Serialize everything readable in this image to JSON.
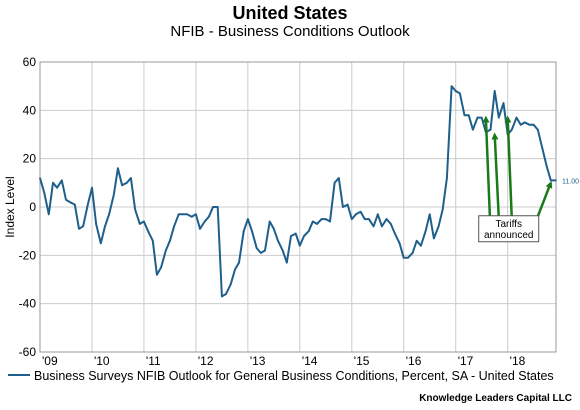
{
  "title": "United States",
  "subtitle": "NFIB - Business Conditions Outlook",
  "legend_label": "Business Surveys NFIB Outlook for General Business Conditions, Percent, SA - United States",
  "credit": "Knowledge Leaders Capital LLC",
  "colors": {
    "series": "#1f5f8b",
    "arrows": "#1a7a1a",
    "grid": "#cccccc"
  },
  "chart_data": {
    "type": "line",
    "ylabel": "Index Level",
    "ylim": [
      -60,
      60
    ],
    "yticks": [
      -60,
      -40,
      -20,
      0,
      20,
      40,
      60
    ],
    "xlim": [
      2009.0,
      2018.93
    ],
    "xticks": [
      {
        "label": "'09",
        "x": 2009.0
      },
      {
        "label": "'10",
        "x": 2010.0
      },
      {
        "label": "'11",
        "x": 2011.0
      },
      {
        "label": "'12",
        "x": 2012.0
      },
      {
        "label": "'13",
        "x": 2013.0
      },
      {
        "label": "'14",
        "x": 2014.0
      },
      {
        "label": "'15",
        "x": 2015.0
      },
      {
        "label": "'16",
        "x": 2016.0
      },
      {
        "label": "'17",
        "x": 2017.0
      },
      {
        "label": "'18",
        "x": 2018.0
      }
    ],
    "grid": true,
    "legend_position": "bottom",
    "end_label": "11.00",
    "series": [
      {
        "name": "Business Surveys NFIB Outlook for General Business Conditions, Percent, SA - United States",
        "points": [
          [
            2009.0,
            12
          ],
          [
            2009.08,
            6
          ],
          [
            2009.17,
            -3
          ],
          [
            2009.25,
            10
          ],
          [
            2009.33,
            8
          ],
          [
            2009.42,
            11
          ],
          [
            2009.5,
            3
          ],
          [
            2009.58,
            2
          ],
          [
            2009.67,
            1
          ],
          [
            2009.75,
            -9
          ],
          [
            2009.83,
            -8
          ],
          [
            2009.92,
            1
          ],
          [
            2010.0,
            8
          ],
          [
            2010.08,
            -7
          ],
          [
            2010.17,
            -15
          ],
          [
            2010.25,
            -8
          ],
          [
            2010.33,
            -3
          ],
          [
            2010.42,
            5
          ],
          [
            2010.5,
            16
          ],
          [
            2010.58,
            9
          ],
          [
            2010.67,
            10
          ],
          [
            2010.75,
            12
          ],
          [
            2010.83,
            -1
          ],
          [
            2010.92,
            -7
          ],
          [
            2011.0,
            -6
          ],
          [
            2011.08,
            -10
          ],
          [
            2011.17,
            -14
          ],
          [
            2011.25,
            -28
          ],
          [
            2011.33,
            -25
          ],
          [
            2011.42,
            -18
          ],
          [
            2011.5,
            -14
          ],
          [
            2011.58,
            -8
          ],
          [
            2011.67,
            -3
          ],
          [
            2011.75,
            -3
          ],
          [
            2011.83,
            -3
          ],
          [
            2011.92,
            -4
          ],
          [
            2012.0,
            -3
          ],
          [
            2012.08,
            -9
          ],
          [
            2012.17,
            -6
          ],
          [
            2012.25,
            -4
          ],
          [
            2012.33,
            0
          ],
          [
            2012.42,
            0
          ],
          [
            2012.5,
            -37
          ],
          [
            2012.58,
            -36
          ],
          [
            2012.67,
            -32
          ],
          [
            2012.75,
            -26
          ],
          [
            2012.83,
            -23
          ],
          [
            2012.92,
            -10
          ],
          [
            2013.0,
            -5
          ],
          [
            2013.08,
            -10
          ],
          [
            2013.17,
            -17
          ],
          [
            2013.25,
            -19
          ],
          [
            2013.33,
            -18
          ],
          [
            2013.42,
            -6
          ],
          [
            2013.5,
            -9
          ],
          [
            2013.58,
            -14
          ],
          [
            2013.67,
            -18
          ],
          [
            2013.75,
            -23
          ],
          [
            2013.83,
            -12
          ],
          [
            2013.92,
            -11
          ],
          [
            2014.0,
            -16
          ],
          [
            2014.08,
            -12
          ],
          [
            2014.17,
            -10
          ],
          [
            2014.25,
            -6
          ],
          [
            2014.33,
            -7
          ],
          [
            2014.42,
            -5
          ],
          [
            2014.5,
            -5
          ],
          [
            2014.58,
            -6
          ],
          [
            2014.67,
            10
          ],
          [
            2014.75,
            12
          ],
          [
            2014.83,
            0
          ],
          [
            2014.92,
            1
          ],
          [
            2015.0,
            -5
          ],
          [
            2015.08,
            -3
          ],
          [
            2015.17,
            -2
          ],
          [
            2015.25,
            -5
          ],
          [
            2015.33,
            -5
          ],
          [
            2015.42,
            -8
          ],
          [
            2015.5,
            -3
          ],
          [
            2015.58,
            -8
          ],
          [
            2015.67,
            -5
          ],
          [
            2015.75,
            -7
          ],
          [
            2015.83,
            -11
          ],
          [
            2015.92,
            -15
          ],
          [
            2016.0,
            -21
          ],
          [
            2016.08,
            -21
          ],
          [
            2016.17,
            -19
          ],
          [
            2016.25,
            -14
          ],
          [
            2016.33,
            -16
          ],
          [
            2016.42,
            -10
          ],
          [
            2016.5,
            -3
          ],
          [
            2016.58,
            -13
          ],
          [
            2016.67,
            -8
          ],
          [
            2016.75,
            -1
          ],
          [
            2016.83,
            12
          ],
          [
            2016.92,
            50
          ],
          [
            2017.0,
            48
          ],
          [
            2017.08,
            47
          ],
          [
            2017.17,
            38
          ],
          [
            2017.25,
            38
          ],
          [
            2017.33,
            32
          ],
          [
            2017.42,
            37
          ],
          [
            2017.5,
            37
          ],
          [
            2017.58,
            31
          ],
          [
            2017.67,
            32
          ],
          [
            2017.75,
            48
          ],
          [
            2017.83,
            37
          ],
          [
            2017.92,
            43
          ],
          [
            2018.0,
            30
          ],
          [
            2018.08,
            32
          ],
          [
            2018.17,
            37
          ],
          [
            2018.25,
            34
          ],
          [
            2018.33,
            35
          ],
          [
            2018.42,
            34
          ],
          [
            2018.5,
            34
          ],
          [
            2018.58,
            32
          ],
          [
            2018.67,
            24
          ],
          [
            2018.75,
            17
          ],
          [
            2018.83,
            11
          ],
          [
            2018.93,
            11
          ]
        ]
      }
    ],
    "annotation": {
      "text_lines": [
        "Tariffs",
        "announced"
      ],
      "box_at": [
        2018.02,
        -9
      ],
      "arrow_targets": [
        [
          2017.58,
          37
        ],
        [
          2017.75,
          30
        ],
        [
          2018.0,
          37
        ],
        [
          2018.83,
          10
        ]
      ]
    }
  }
}
